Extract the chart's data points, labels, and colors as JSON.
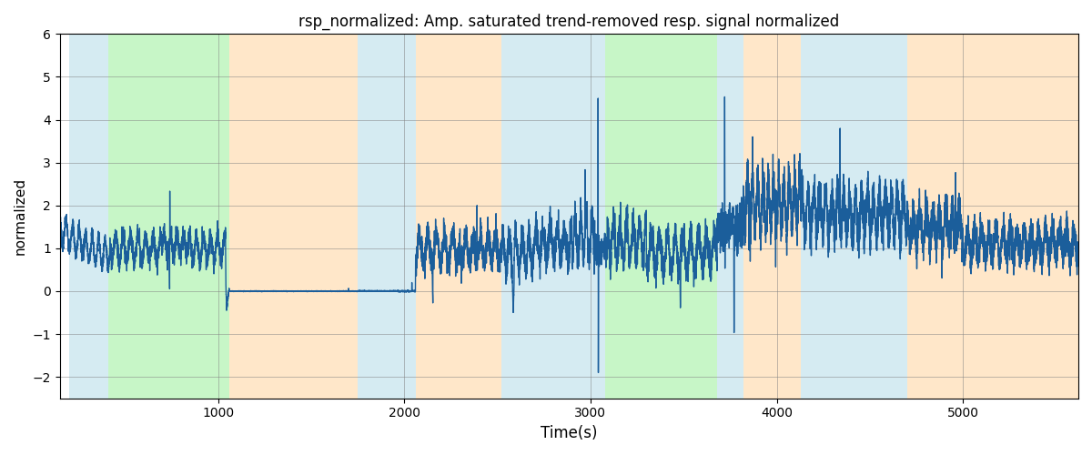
{
  "title": "rsp_normalized: Amp. saturated trend-removed resp. signal normalized",
  "xlabel": "Time(s)",
  "ylabel": "normalized",
  "ylim": [
    -2.5,
    6
  ],
  "xlim": [
    150,
    5620
  ],
  "yticks": [
    -2,
    -1,
    0,
    1,
    2,
    3,
    4,
    5,
    6
  ],
  "xticks": [
    1000,
    2000,
    3000,
    4000,
    5000
  ],
  "bg_regions": [
    {
      "xmin": 200,
      "xmax": 410,
      "color": "#add8e6",
      "alpha": 0.5
    },
    {
      "xmin": 410,
      "xmax": 1060,
      "color": "#90ee90",
      "alpha": 0.5
    },
    {
      "xmin": 1060,
      "xmax": 1750,
      "color": "#ffd59e",
      "alpha": 0.55
    },
    {
      "xmin": 1750,
      "xmax": 2060,
      "color": "#add8e6",
      "alpha": 0.5
    },
    {
      "xmin": 2060,
      "xmax": 2520,
      "color": "#ffd59e",
      "alpha": 0.55
    },
    {
      "xmin": 2520,
      "xmax": 2960,
      "color": "#add8e6",
      "alpha": 0.5
    },
    {
      "xmin": 2960,
      "xmax": 3080,
      "color": "#add8e6",
      "alpha": 0.5
    },
    {
      "xmin": 3080,
      "xmax": 3680,
      "color": "#90ee90",
      "alpha": 0.5
    },
    {
      "xmin": 3680,
      "xmax": 3820,
      "color": "#add8e6",
      "alpha": 0.5
    },
    {
      "xmin": 3820,
      "xmax": 4130,
      "color": "#ffd59e",
      "alpha": 0.55
    },
    {
      "xmin": 4130,
      "xmax": 4700,
      "color": "#add8e6",
      "alpha": 0.5
    },
    {
      "xmin": 4700,
      "xmax": 5000,
      "color": "#ffd59e",
      "alpha": 0.55
    },
    {
      "xmin": 5000,
      "xmax": 5620,
      "color": "#ffd59e",
      "alpha": 0.55
    }
  ],
  "line_color": "#1b5e9b",
  "line_width": 1.0,
  "figsize": [
    12,
    5
  ],
  "dpi": 100
}
